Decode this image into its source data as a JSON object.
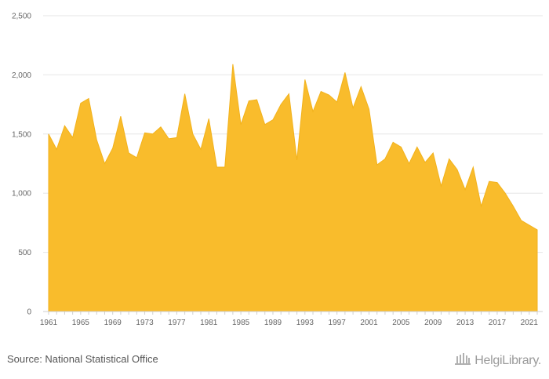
{
  "chart_data": {
    "type": "area",
    "title": "",
    "xlabel": "",
    "ylabel": "",
    "ylim": [
      0,
      2500
    ],
    "grid": true,
    "y_ticks": [
      "0",
      "500",
      "1,000",
      "1,500",
      "2,000",
      "2,500"
    ],
    "x_tick_labels": [
      "1961",
      "1965",
      "1969",
      "1973",
      "1977",
      "1981",
      "1985",
      "1989",
      "1993",
      "1997",
      "2001",
      "2005",
      "2009",
      "2013",
      "2017",
      "2021"
    ],
    "color": "#F9BC2C",
    "x": [
      1961,
      1962,
      1963,
      1964,
      1965,
      1966,
      1967,
      1968,
      1969,
      1970,
      1971,
      1972,
      1973,
      1974,
      1975,
      1976,
      1977,
      1978,
      1979,
      1980,
      1981,
      1982,
      1983,
      1984,
      1985,
      1986,
      1987,
      1988,
      1989,
      1990,
      1991,
      1992,
      1993,
      1994,
      1995,
      1996,
      1997,
      1998,
      1999,
      2000,
      2001,
      2002,
      2003,
      2004,
      2005,
      2006,
      2007,
      2008,
      2009,
      2010,
      2011,
      2012,
      2013,
      2014,
      2015,
      2016,
      2017,
      2018,
      2019,
      2020,
      2021,
      2022
    ],
    "values": [
      1500,
      1370,
      1570,
      1470,
      1760,
      1800,
      1450,
      1250,
      1380,
      1650,
      1340,
      1300,
      1510,
      1500,
      1560,
      1460,
      1470,
      1840,
      1500,
      1370,
      1630,
      1220,
      1220,
      2090,
      1580,
      1780,
      1790,
      1580,
      1620,
      1750,
      1840,
      1280,
      1960,
      1690,
      1860,
      1830,
      1770,
      2020,
      1720,
      1900,
      1710,
      1240,
      1290,
      1430,
      1390,
      1250,
      1390,
      1260,
      1340,
      1060,
      1290,
      1200,
      1030,
      1220,
      890,
      1100,
      1090,
      1000,
      890,
      770,
      730,
      690
    ]
  },
  "footer": {
    "source": "Source: National Statistical Office",
    "logo_text": "HelgiLibrary."
  }
}
